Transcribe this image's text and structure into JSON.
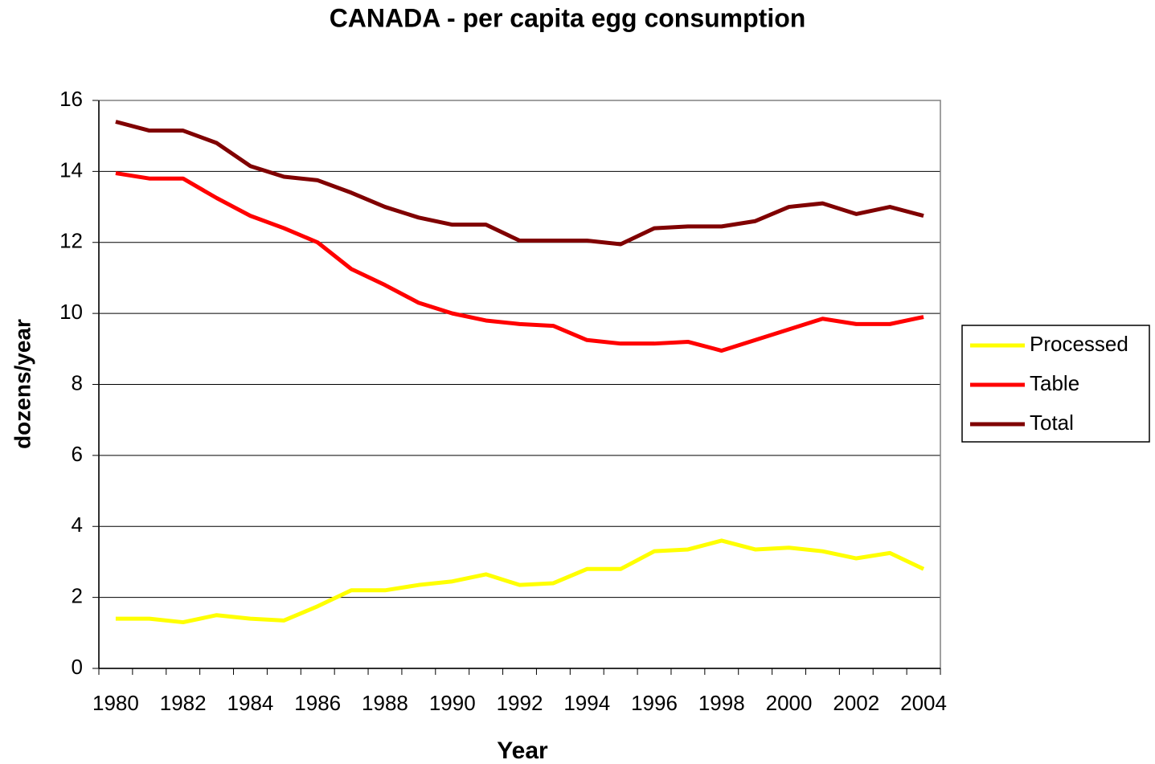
{
  "chart_data": {
    "type": "line",
    "title": "CANADA - per capita egg consumption",
    "xlabel": "Year",
    "ylabel": "dozens/year",
    "categories": [
      "1980",
      null,
      "1982",
      null,
      "1984",
      null,
      "1986",
      null,
      "1988",
      null,
      "1990",
      null,
      "1992",
      null,
      "1994",
      null,
      "1996",
      null,
      "1998",
      null,
      "2000",
      null,
      "2002",
      null,
      "2004"
    ],
    "series": [
      {
        "name": "Processed",
        "color": "#ffff00",
        "values": [
          1.4,
          1.4,
          1.3,
          1.5,
          1.4,
          1.35,
          1.75,
          2.2,
          2.2,
          2.35,
          2.45,
          2.65,
          2.35,
          2.4,
          2.8,
          2.8,
          3.3,
          3.35,
          3.6,
          3.35,
          3.4,
          3.3,
          3.1,
          3.25,
          2.8
        ]
      },
      {
        "name": "Table",
        "color": "#ff0000",
        "values": [
          13.95,
          13.8,
          13.8,
          13.25,
          12.75,
          12.4,
          12.0,
          11.25,
          10.8,
          10.3,
          10.0,
          9.8,
          9.7,
          9.65,
          9.25,
          9.15,
          9.15,
          9.2,
          8.95,
          9.25,
          9.55,
          9.85,
          9.7,
          9.7,
          9.9
        ]
      },
      {
        "name": "Total",
        "color": "#800000",
        "values": [
          15.4,
          15.15,
          15.15,
          14.8,
          14.15,
          13.85,
          13.75,
          13.4,
          13.0,
          12.7,
          12.5,
          12.5,
          12.05,
          12.05,
          12.05,
          11.95,
          12.4,
          12.45,
          12.45,
          12.6,
          13.0,
          13.1,
          12.8,
          13.0,
          12.75
        ]
      }
    ],
    "ylim": [
      0,
      16
    ],
    "yticks": [
      0,
      2,
      4,
      6,
      8,
      10,
      12,
      14,
      16
    ],
    "grid": true,
    "legend": "right"
  }
}
